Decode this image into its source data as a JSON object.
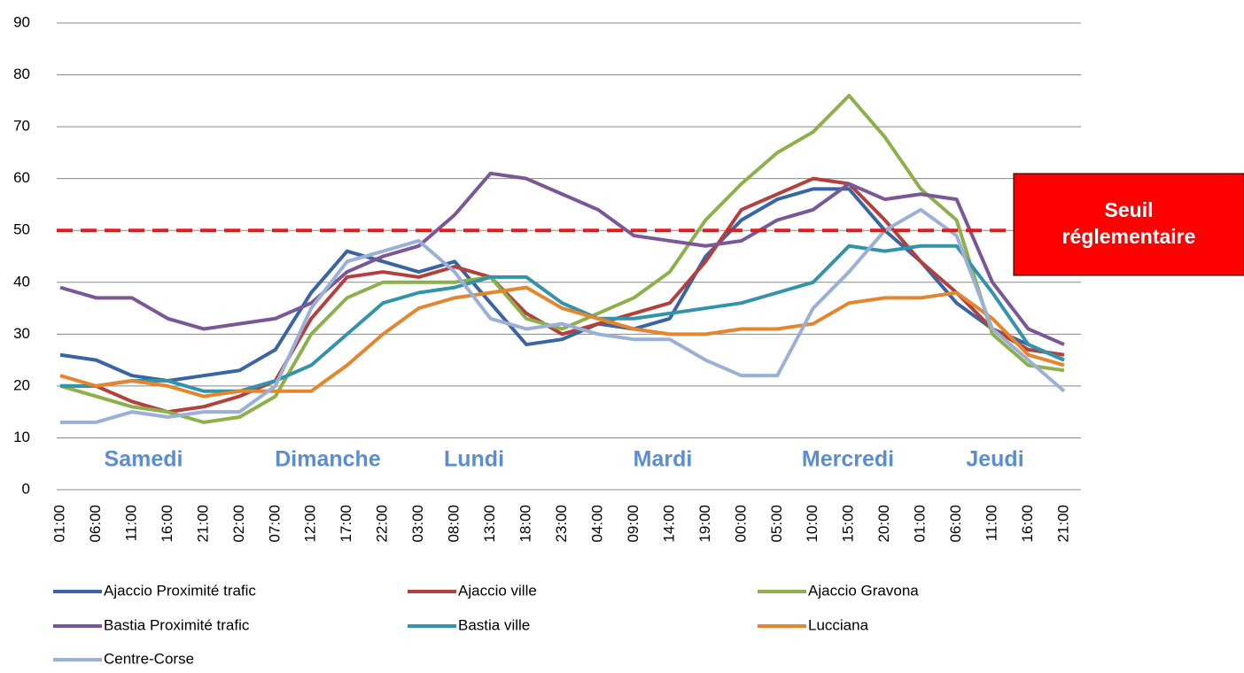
{
  "chart_data": {
    "type": "line",
    "categories": [
      "01:00",
      "06:00",
      "11:00",
      "16:00",
      "21:00",
      "02:00",
      "07:00",
      "12:00",
      "17:00",
      "22:00",
      "03:00",
      "08:00",
      "13:00",
      "18:00",
      "23:00",
      "04:00",
      "09:00",
      "14:00",
      "19:00",
      "00:00",
      "05:00",
      "10:00",
      "15:00",
      "20:00",
      "01:00",
      "06:00",
      "11:00",
      "16:00",
      "21:00"
    ],
    "series": [
      {
        "name": "Ajaccio Proximité trafic",
        "color": "#3a65a5",
        "values": [
          26,
          25,
          22,
          21,
          22,
          23,
          27,
          38,
          46,
          44,
          42,
          44,
          36,
          28,
          29,
          32,
          31,
          33,
          45,
          52,
          56,
          58,
          58,
          50,
          44,
          36,
          31,
          28,
          25
        ]
      },
      {
        "name": "Ajaccio ville",
        "color": "#b2403c",
        "values": [
          20,
          20,
          17,
          15,
          16,
          18,
          21,
          33,
          41,
          42,
          41,
          43,
          41,
          34,
          30,
          32,
          34,
          36,
          44,
          54,
          57,
          60,
          59,
          52,
          44,
          38,
          31,
          27,
          26
        ]
      },
      {
        "name": "Ajaccio Gravona",
        "color": "#8cb04a",
        "values": [
          20,
          18,
          16,
          15,
          13,
          14,
          18,
          30,
          37,
          40,
          40,
          40,
          41,
          33,
          31,
          34,
          37,
          42,
          52,
          59,
          65,
          69,
          76,
          68,
          58,
          52,
          30,
          24,
          23
        ]
      },
      {
        "name": "Bastia Proximité trafic",
        "color": "#7a5796",
        "values": [
          39,
          37,
          37,
          33,
          31,
          32,
          33,
          36,
          42,
          45,
          47,
          53,
          61,
          60,
          57,
          54,
          49,
          48,
          47,
          48,
          52,
          54,
          59,
          56,
          57,
          56,
          40,
          31,
          28
        ]
      },
      {
        "name": "Bastia ville",
        "color": "#3393aa",
        "values": [
          20,
          20,
          21,
          21,
          19,
          19,
          21,
          24,
          30,
          36,
          38,
          39,
          41,
          41,
          36,
          33,
          33,
          34,
          35,
          36,
          38,
          40,
          47,
          46,
          47,
          47,
          38,
          28,
          25
        ]
      },
      {
        "name": "Lucciana",
        "color": "#e4852f",
        "values": [
          22,
          20,
          21,
          20,
          18,
          19,
          19,
          19,
          24,
          30,
          35,
          37,
          38,
          39,
          35,
          33,
          31,
          30,
          30,
          31,
          31,
          32,
          36,
          37,
          37,
          38,
          33,
          26,
          24
        ]
      },
      {
        "name": "Centre-Corse",
        "color": "#9bb0d6",
        "values": [
          13,
          13,
          15,
          14,
          15,
          15,
          20,
          35,
          44,
          46,
          48,
          42,
          33,
          31,
          32,
          30,
          29,
          29,
          25,
          22,
          22,
          35,
          42,
          50,
          54,
          49,
          31,
          25,
          19
        ]
      }
    ],
    "ylim": [
      0,
      90
    ],
    "yticks": [
      0,
      10,
      20,
      30,
      40,
      50,
      60,
      70,
      80,
      90
    ],
    "grid": true,
    "threshold": 50,
    "threshold_label": "Seuil réglementaire",
    "annotations": [
      "Samedi",
      "Dimanche",
      "Lundi",
      "Mardi",
      "Mercredi",
      "Jeudi"
    ]
  }
}
